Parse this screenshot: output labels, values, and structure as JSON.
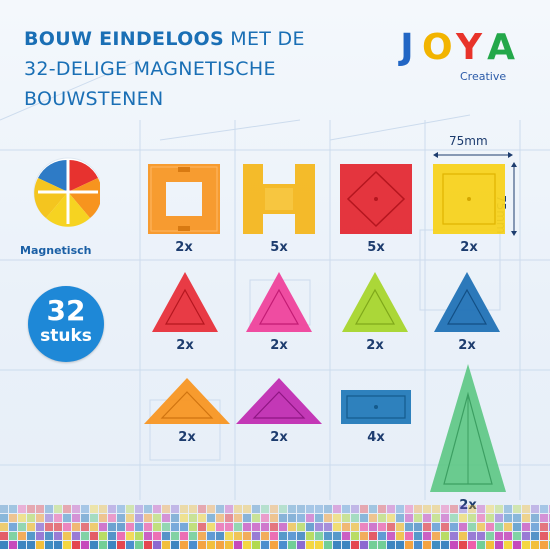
{
  "header": {
    "bold_text": "BOUW EINDELOOS",
    "rest_line1": " MET DE",
    "line2": "32-DELIGE MAGNETISCHE",
    "line3": "BOUWSTENEN"
  },
  "logo": {
    "letters": [
      "J",
      "O",
      "Y",
      "A"
    ],
    "subtitle": "Creative",
    "colors": [
      "#2266c4",
      "#f2b400",
      "#e8332a",
      "#24a84a"
    ]
  },
  "magnet_label": "Magnetisch",
  "badge": {
    "number": "32",
    "label": "stuks"
  },
  "dimensions": {
    "width_label": "75mm",
    "height_label": "75mm"
  },
  "pieces": [
    {
      "name": "orange-square-frame",
      "count": "2x",
      "color": "#f7941e"
    },
    {
      "name": "yellow-h-piece",
      "count": "5x",
      "color": "#f4b518"
    },
    {
      "name": "red-square",
      "count": "5x",
      "color": "#e3262f"
    },
    {
      "name": "yellow-square",
      "count": "2x",
      "color": "#f7d21e"
    },
    {
      "name": "red-triangle",
      "count": "2x",
      "color": "#e72d37"
    },
    {
      "name": "pink-triangle",
      "count": "2x",
      "color": "#ef3f9a"
    },
    {
      "name": "lime-triangle",
      "count": "2x",
      "color": "#a8d52d"
    },
    {
      "name": "blue-triangle",
      "count": "2x",
      "color": "#1d70b5"
    },
    {
      "name": "orange-right-triangle",
      "count": "2x",
      "color": "#f7941e"
    },
    {
      "name": "purple-right-triangle",
      "count": "2x",
      "color": "#c02ab0"
    },
    {
      "name": "blue-rectangle",
      "count": "4x",
      "color": "#1f79b8"
    },
    {
      "name": "green-tall-triangle",
      "count": "2x",
      "color": "#5cc783"
    }
  ]
}
